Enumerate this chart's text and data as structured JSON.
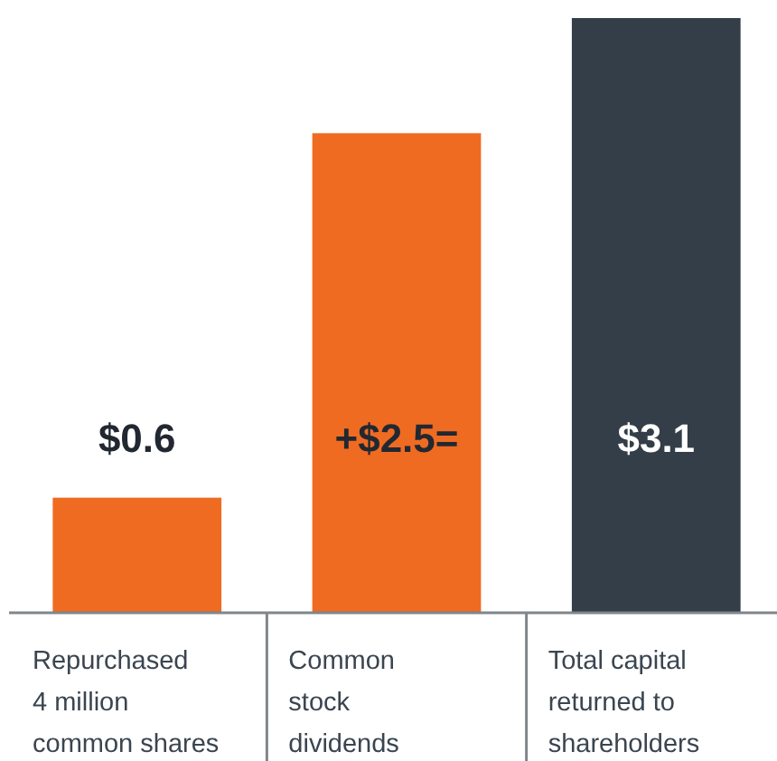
{
  "chart_data": {
    "type": "bar",
    "categories": [
      "Repurchased\n4 million\ncommon shares",
      "Common\nstock\ndividends",
      "Total capital\nreturned to\nshareholders"
    ],
    "values": [
      0.6,
      2.5,
      3.1
    ],
    "colors": [
      "#ef6b22",
      "#ef6b22",
      "#333e48"
    ],
    "value_labels": [
      "$0.6",
      "+$2.5=",
      "$3.1"
    ]
  }
}
